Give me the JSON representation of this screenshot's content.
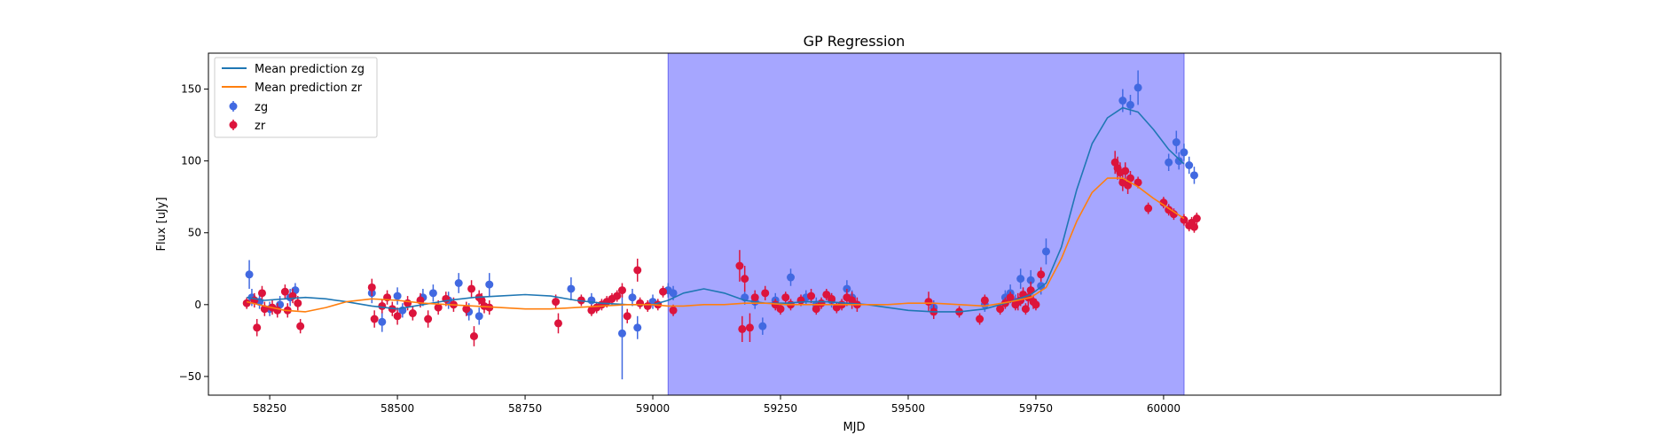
{
  "chart_data": {
    "type": "scatter",
    "title": "GP Regression",
    "xlabel": "MJD",
    "ylabel": "Flux [uJy]",
    "xlim": [
      58130,
      60660
    ],
    "ylim": [
      -63,
      175
    ],
    "xticks": [
      58250,
      58500,
      58750,
      59000,
      59250,
      59500,
      59750,
      60000
    ],
    "yticks": [
      -50,
      0,
      50,
      100,
      150
    ],
    "grid": false,
    "legend_position": "top-left",
    "shaded_region": {
      "x_start": 59030,
      "x_end": 60040,
      "color": "#a6a6ff"
    },
    "series": [
      {
        "name": "Mean prediction zg",
        "kind": "line",
        "color": "#1f77b4",
        "x": [
          58205,
          58240,
          58280,
          58320,
          58360,
          58400,
          58450,
          58500,
          58550,
          58600,
          58650,
          58700,
          58750,
          58800,
          58850,
          58900,
          58950,
          59000,
          59030,
          59060,
          59100,
          59140,
          59180,
          59220,
          59260,
          59300,
          59340,
          59380,
          59420,
          59460,
          59500,
          59550,
          59600,
          59650,
          59700,
          59740,
          59770,
          59800,
          59830,
          59860,
          59890,
          59920,
          59950,
          59980,
          60010,
          60040
        ],
        "y": [
          5,
          3,
          4,
          5,
          4,
          2,
          -1,
          -3,
          0,
          3,
          5,
          6,
          7,
          6,
          3,
          1,
          0,
          0,
          3,
          8,
          11,
          8,
          3,
          1,
          1,
          2,
          2,
          1,
          0,
          -2,
          -4,
          -5,
          -5,
          -3,
          2,
          7,
          15,
          40,
          80,
          112,
          130,
          137,
          134,
          122,
          108,
          98
        ]
      },
      {
        "name": "Mean prediction zr",
        "kind": "line",
        "color": "#ff7f0e",
        "x": [
          58205,
          58240,
          58280,
          58320,
          58360,
          58400,
          58450,
          58500,
          58550,
          58600,
          58650,
          58700,
          58750,
          58800,
          58850,
          58900,
          58950,
          59000,
          59030,
          59060,
          59100,
          59140,
          59180,
          59220,
          59260,
          59300,
          59340,
          59380,
          59420,
          59460,
          59500,
          59550,
          59600,
          59650,
          59700,
          59740,
          59770,
          59800,
          59830,
          59860,
          59890,
          59920,
          59950,
          59980,
          60010,
          60040
        ],
        "y": [
          2,
          -1,
          -4,
          -5,
          -2,
          2,
          4,
          3,
          1,
          0,
          -1,
          -2,
          -3,
          -3,
          -2,
          -1,
          0,
          0,
          -1,
          -1,
          0,
          0,
          1,
          1,
          0,
          0,
          0,
          0,
          0,
          0,
          1,
          1,
          0,
          -1,
          2,
          5,
          12,
          32,
          58,
          78,
          88,
          88,
          82,
          74,
          67,
          60
        ]
      },
      {
        "name": "zg",
        "kind": "errorbar",
        "color": "#4169e1",
        "x": [
          58210,
          58215,
          58230,
          58250,
          58270,
          58290,
          58300,
          58450,
          58470,
          58500,
          58510,
          58550,
          58570,
          58600,
          58620,
          58640,
          58660,
          58680,
          58840,
          58880,
          58940,
          58960,
          58970,
          59000,
          59030,
          59040,
          59180,
          59200,
          59215,
          59240,
          59270,
          59300,
          59320,
          59350,
          59380,
          59390,
          59550,
          59650,
          59690,
          59700,
          59710,
          59720,
          59740,
          59760,
          59770,
          59920,
          59935,
          59950,
          60010,
          60025,
          60030,
          60040,
          60050,
          60060
        ],
        "y": [
          21,
          5,
          2,
          -3,
          0,
          5,
          10,
          8,
          -12,
          6,
          -4,
          5,
          8,
          3,
          15,
          -5,
          -8,
          14,
          11,
          3,
          -20,
          5,
          -16,
          2,
          10,
          8,
          5,
          2,
          -15,
          3,
          19,
          5,
          0,
          3,
          11,
          5,
          -2,
          0,
          5,
          8,
          2,
          18,
          17,
          13,
          37,
          142,
          139,
          151,
          99,
          113,
          100,
          106,
          97,
          90
        ],
        "err": [
          10,
          6,
          5,
          5,
          6,
          6,
          5,
          7,
          7,
          6,
          5,
          6,
          6,
          6,
          7,
          6,
          6,
          8,
          8,
          5,
          32,
          6,
          8,
          5,
          5,
          5,
          5,
          5,
          6,
          5,
          6,
          5,
          5,
          5,
          6,
          5,
          5,
          5,
          5,
          6,
          5,
          7,
          7,
          6,
          9,
          8,
          7,
          12,
          6,
          8,
          6,
          6,
          6,
          6
        ]
      },
      {
        "name": "zr",
        "kind": "errorbar",
        "color": "#dc143c",
        "x": [
          58205,
          58220,
          58225,
          58235,
          58240,
          58255,
          58265,
          58280,
          58285,
          58295,
          58305,
          58310,
          58450,
          58455,
          58470,
          58480,
          58490,
          58500,
          58520,
          58530,
          58545,
          58560,
          58580,
          58595,
          58610,
          58635,
          58645,
          58650,
          58660,
          58665,
          58670,
          58680,
          58810,
          58815,
          58860,
          58880,
          58890,
          58900,
          58910,
          58920,
          58930,
          58940,
          58950,
          58970,
          58975,
          58990,
          59010,
          59020,
          59040,
          59170,
          59175,
          59180,
          59190,
          59200,
          59220,
          59240,
          59250,
          59260,
          59270,
          59290,
          59310,
          59320,
          59330,
          59340,
          59350,
          59360,
          59370,
          59380,
          59390,
          59400,
          59540,
          59550,
          59600,
          59640,
          59650,
          59680,
          59690,
          59700,
          59710,
          59715,
          59720,
          59725,
          59730,
          59735,
          59740,
          59745,
          59750,
          59760,
          59905,
          59910,
          59915,
          59920,
          59925,
          59930,
          59935,
          59950,
          59970,
          60000,
          60010,
          60020,
          60040,
          60050,
          60055,
          60060,
          60065
        ],
        "y": [
          1,
          3,
          -16,
          8,
          -3,
          -2,
          -4,
          9,
          -4,
          6,
          1,
          -15,
          12,
          -10,
          -1,
          5,
          -3,
          -8,
          1,
          -6,
          3,
          -10,
          -2,
          4,
          0,
          -3,
          11,
          -22,
          5,
          3,
          -1,
          -2,
          2,
          -13,
          3,
          -4,
          -2,
          0,
          2,
          4,
          6,
          10,
          -8,
          24,
          1,
          -1,
          0,
          9,
          -4,
          27,
          -17,
          18,
          -16,
          5,
          8,
          0,
          -3,
          5,
          0,
          3,
          6,
          -3,
          1,
          7,
          4,
          -2,
          0,
          5,
          3,
          0,
          2,
          -5,
          -5,
          -10,
          3,
          -3,
          1,
          5,
          0,
          2,
          3,
          7,
          -3,
          5,
          10,
          2,
          0,
          21,
          99,
          95,
          92,
          85,
          93,
          83,
          88,
          85,
          67,
          71,
          66,
          63,
          59,
          55,
          57,
          54,
          60
        ],
        "err": [
          4,
          5,
          6,
          5,
          5,
          5,
          5,
          5,
          5,
          5,
          5,
          5,
          6,
          6,
          5,
          5,
          5,
          6,
          5,
          5,
          5,
          6,
          5,
          5,
          5,
          5,
          6,
          7,
          5,
          5,
          5,
          5,
          5,
          7,
          4,
          4,
          4,
          4,
          4,
          4,
          4,
          5,
          5,
          8,
          4,
          4,
          4,
          4,
          4,
          11,
          9,
          9,
          10,
          5,
          5,
          4,
          4,
          4,
          4,
          4,
          5,
          4,
          4,
          4,
          4,
          4,
          4,
          6,
          6,
          5,
          7,
          5,
          4,
          4,
          4,
          4,
          4,
          4,
          4,
          6,
          4,
          5,
          4,
          6,
          6,
          5,
          4,
          5,
          8,
          8,
          7,
          6,
          6,
          6,
          5,
          4,
          4,
          4,
          4,
          4,
          4,
          4,
          4,
          4,
          4
        ]
      }
    ]
  }
}
